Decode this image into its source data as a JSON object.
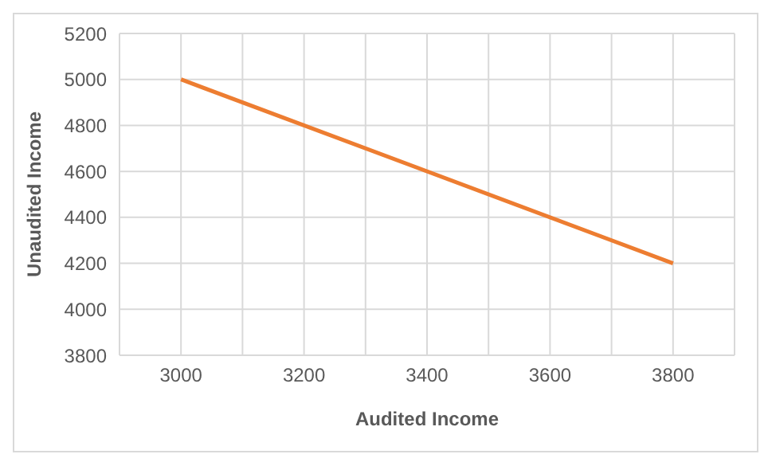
{
  "chart_data": {
    "type": "line",
    "xlabel": "Audited Income",
    "ylabel": "Unaudited Income",
    "x": [
      3000,
      3800
    ],
    "series": [
      {
        "color": "#ed7d31",
        "values": [
          5000,
          4200
        ]
      }
    ],
    "xlim": [
      2900,
      3900
    ],
    "xticks": [
      {
        "value": 2900,
        "label": null
      },
      3000,
      {
        "value": 3100,
        "label": null
      },
      3200,
      {
        "value": 3300,
        "label": null
      },
      3400,
      {
        "value": 3500,
        "label": null
      },
      3600,
      {
        "value": 3700,
        "label": null
      },
      3800,
      {
        "value": 3900,
        "label": null
      }
    ],
    "ylim": [
      3800,
      5200
    ],
    "yticks": [
      3800,
      4000,
      4200,
      4400,
      4600,
      4800,
      5000,
      5200
    ],
    "grid": true,
    "marker": "none",
    "line_style": "solid",
    "legend": false
  }
}
